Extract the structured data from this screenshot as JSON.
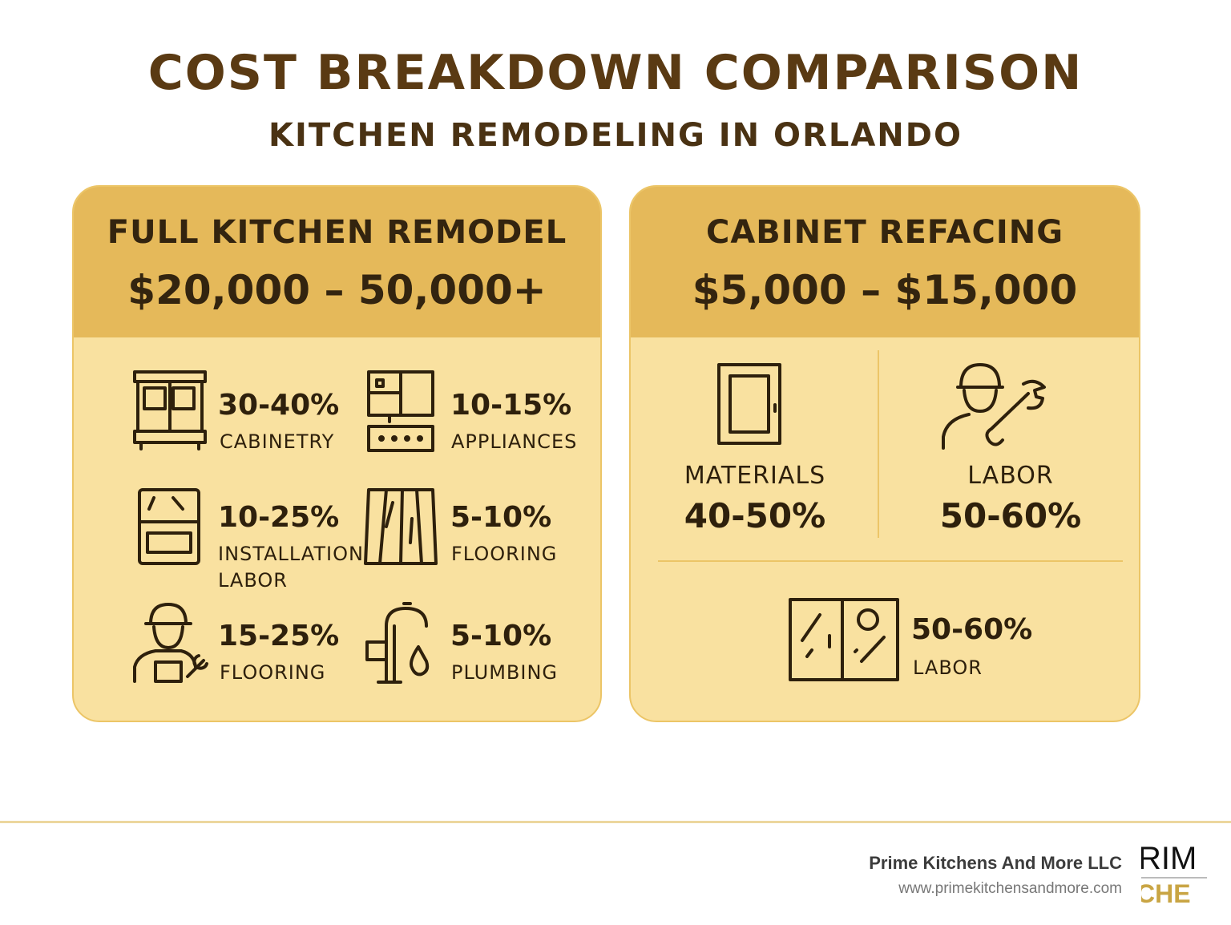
{
  "title": "COST BREAKDOWN COMPARISON",
  "subtitle": "KITCHEN REMODELING IN ORLANDO",
  "full": {
    "title": "FULL KITCHEN REMODEL",
    "price": "$20,000 – 50,000+",
    "items": [
      {
        "pct": "30-40%",
        "label": "CABINETRY",
        "icon": "cabinet-icon"
      },
      {
        "pct": "10-15%",
        "label": "APPLIANCES",
        "icon": "appliance-icon"
      },
      {
        "pct": "10-25%",
        "label": "INSTALLATION LABOR",
        "icon": "oven-icon"
      },
      {
        "pct": "5-10%",
        "label": "FLOORING",
        "icon": "flooring-icon"
      },
      {
        "pct": "15-25%",
        "label": "FLOORING",
        "icon": "worker-icon"
      },
      {
        "pct": "5-10%",
        "label": "PLUMBING",
        "icon": "faucet-icon"
      }
    ]
  },
  "refacing": {
    "title": "CABINET REFACING",
    "price": "$5,000 – $15,000",
    "materials": {
      "label": "MATERIALS",
      "pct": "40-50%",
      "icon": "cabinet-door-icon"
    },
    "labor": {
      "label": "LABOR",
      "pct": "50-60%",
      "icon": "worker-wrench-icon"
    },
    "bottom": {
      "pct": "50-60%",
      "label": "LABOR",
      "icon": "glass-door-icon"
    }
  },
  "footer": {
    "company": "Prime Kitchens And More LLC",
    "url": "www.primekitchensandmore.com",
    "logo_text": "PRIME KITCHENS &"
  },
  "colors": {
    "header": "#e5b95a",
    "body": "#f9e1a0",
    "title": "#5a3a13"
  }
}
